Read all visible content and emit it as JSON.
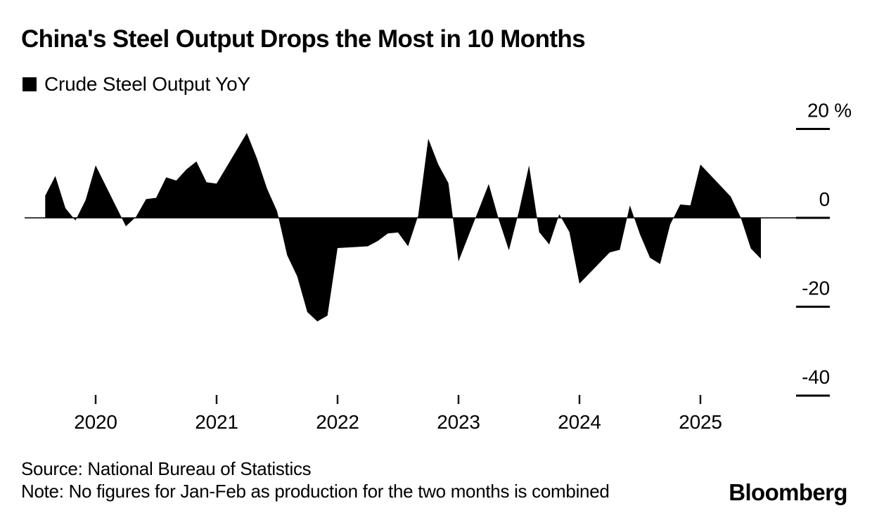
{
  "header": {
    "title": "China's Steel Output Drops the Most in 10 Months",
    "legend_label": "Crude Steel Output YoY"
  },
  "footer": {
    "source": "Source: National Bureau of Statistics",
    "note": "Note: No figures for Jan-Feb as production for the two months is combined",
    "brand": "Bloomberg"
  },
  "colors": {
    "series_fill": "#000000",
    "zero_line": "#3f3f3f",
    "tick": "#000000",
    "background": "#ffffff"
  },
  "chart_data": {
    "type": "area",
    "title": "China's Steel Output Drops the Most in 10 Months",
    "series_name": "Crude Steel Output YoY",
    "unit": "%",
    "grid": false,
    "legend_position": "top-left",
    "y_axis": {
      "side": "right",
      "range": [
        -45,
        25
      ],
      "ticks": [
        {
          "label": "20 %",
          "value": 20
        },
        {
          "label": "0",
          "value": 0
        },
        {
          "label": "-20",
          "value": -20
        },
        {
          "label": "-40",
          "value": -40
        }
      ]
    },
    "x_axis": {
      "ticks": [
        {
          "label": "2020",
          "year": 2020
        },
        {
          "label": "2021",
          "year": 2021
        },
        {
          "label": "2022",
          "year": 2022
        },
        {
          "label": "2023",
          "year": 2023
        },
        {
          "label": "2024",
          "year": 2024
        },
        {
          "label": "2025",
          "year": 2025
        }
      ]
    },
    "points": [
      {
        "date": "2019-07",
        "value": 5.0
      },
      {
        "date": "2019-08",
        "value": 9.4
      },
      {
        "date": "2019-09",
        "value": 2.2
      },
      {
        "date": "2019-10",
        "value": -0.6
      },
      {
        "date": "2019-11",
        "value": 4.0
      },
      {
        "date": "2019-12",
        "value": 11.8
      },
      {
        "date": "2020-03",
        "value": -1.9
      },
      {
        "date": "2020-04",
        "value": 0.2
      },
      {
        "date": "2020-05",
        "value": 4.2
      },
      {
        "date": "2020-06",
        "value": 4.5
      },
      {
        "date": "2020-07",
        "value": 9.1
      },
      {
        "date": "2020-08",
        "value": 8.4
      },
      {
        "date": "2020-09",
        "value": 10.9
      },
      {
        "date": "2020-10",
        "value": 12.7
      },
      {
        "date": "2020-11",
        "value": 8.0
      },
      {
        "date": "2020-12",
        "value": 7.7
      },
      {
        "date": "2021-03",
        "value": 19.1
      },
      {
        "date": "2021-04",
        "value": 13.4
      },
      {
        "date": "2021-05",
        "value": 6.6
      },
      {
        "date": "2021-06",
        "value": 1.5
      },
      {
        "date": "2021-07",
        "value": -8.4
      },
      {
        "date": "2021-08",
        "value": -13.2
      },
      {
        "date": "2021-09",
        "value": -21.2
      },
      {
        "date": "2021-10",
        "value": -23.3
      },
      {
        "date": "2021-11",
        "value": -22.0
      },
      {
        "date": "2021-12",
        "value": -6.8
      },
      {
        "date": "2022-03",
        "value": -6.4
      },
      {
        "date": "2022-04",
        "value": -5.2
      },
      {
        "date": "2022-05",
        "value": -3.5
      },
      {
        "date": "2022-06",
        "value": -3.3
      },
      {
        "date": "2022-07",
        "value": -6.4
      },
      {
        "date": "2022-08",
        "value": 0.5
      },
      {
        "date": "2022-09",
        "value": 17.8
      },
      {
        "date": "2022-10",
        "value": 12.0
      },
      {
        "date": "2022-11",
        "value": 7.8
      },
      {
        "date": "2022-12",
        "value": -9.8
      },
      {
        "date": "2023-03",
        "value": 7.6
      },
      {
        "date": "2023-04",
        "value": -0.4
      },
      {
        "date": "2023-05",
        "value": -7.3
      },
      {
        "date": "2023-06",
        "value": 1.5
      },
      {
        "date": "2023-07",
        "value": 11.8
      },
      {
        "date": "2023-08",
        "value": -3.2
      },
      {
        "date": "2023-09",
        "value": -6.0
      },
      {
        "date": "2023-10",
        "value": 0.8
      },
      {
        "date": "2023-11",
        "value": -3.2
      },
      {
        "date": "2023-12",
        "value": -14.8
      },
      {
        "date": "2024-03",
        "value": -7.8
      },
      {
        "date": "2024-04",
        "value": -7.2
      },
      {
        "date": "2024-05",
        "value": 2.8
      },
      {
        "date": "2024-06",
        "value": -3.7
      },
      {
        "date": "2024-07",
        "value": -9.0
      },
      {
        "date": "2024-08",
        "value": -10.4
      },
      {
        "date": "2024-09",
        "value": -1.5
      },
      {
        "date": "2024-10",
        "value": 3.0
      },
      {
        "date": "2024-11",
        "value": 2.8
      },
      {
        "date": "2024-12",
        "value": 12.0
      },
      {
        "date": "2025-03",
        "value": 4.8
      },
      {
        "date": "2025-04",
        "value": 0.1
      },
      {
        "date": "2025-05",
        "value": -6.9
      },
      {
        "date": "2025-06",
        "value": -9.2
      }
    ]
  }
}
